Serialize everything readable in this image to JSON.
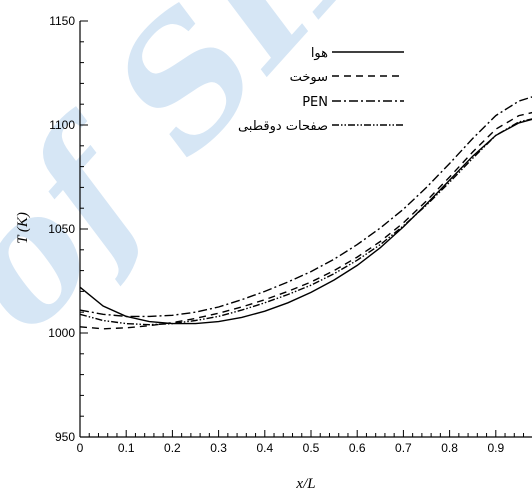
{
  "watermark": {
    "text": "of SID",
    "color": "#d6e6f5"
  },
  "chart_data": {
    "type": "line",
    "xlabel": "x/L",
    "ylabel": "T (K)",
    "xlim": [
      0,
      1
    ],
    "ylim": [
      950,
      1150
    ],
    "x_ticks": [
      "0",
      "0.1",
      "0.2",
      "0.3",
      "0.4",
      "0.5",
      "0.6",
      "0.7",
      "0.8",
      "0.9"
    ],
    "y_ticks": [
      "950",
      "1000",
      "1050",
      "1100",
      "1150"
    ],
    "grid": false,
    "legend_position": "top-right",
    "series": [
      {
        "name": "هوا",
        "dash": "solid",
        "x": [
          0,
          0.05,
          0.1,
          0.15,
          0.2,
          0.25,
          0.3,
          0.35,
          0.4,
          0.45,
          0.5,
          0.55,
          0.6,
          0.65,
          0.7,
          0.75,
          0.8,
          0.85,
          0.9,
          0.95,
          1.0
        ],
        "y": [
          1022,
          1013,
          1008,
          1005.5,
          1004.5,
          1004.5,
          1005.5,
          1007.5,
          1010.5,
          1014.5,
          1019.5,
          1025.5,
          1032.5,
          1041,
          1051,
          1062,
          1073.5,
          1085,
          1095,
          1101,
          1104
        ]
      },
      {
        "name": "سوخت",
        "dash": "dashed",
        "x": [
          0,
          0.05,
          0.1,
          0.15,
          0.2,
          0.25,
          0.3,
          0.35,
          0.4,
          0.45,
          0.5,
          0.55,
          0.6,
          0.65,
          0.7,
          0.75,
          0.8,
          0.85,
          0.9,
          0.95,
          1.0
        ],
        "y": [
          1003,
          1002,
          1002.5,
          1003.5,
          1005,
          1007,
          1009.5,
          1012.5,
          1016,
          1020,
          1024.5,
          1030,
          1036.5,
          1044,
          1053,
          1063.5,
          1075,
          1087,
          1098,
          1104.5,
          1107
        ]
      },
      {
        "name": "PEN",
        "dash": "dash-dot",
        "x": [
          0,
          0.05,
          0.1,
          0.15,
          0.2,
          0.25,
          0.3,
          0.35,
          0.4,
          0.45,
          0.5,
          0.55,
          0.6,
          0.65,
          0.7,
          0.75,
          0.8,
          0.85,
          0.9,
          0.95,
          1.0
        ],
        "y": [
          1011,
          1009,
          1008,
          1008,
          1008.5,
          1010,
          1012.5,
          1016,
          1020,
          1024.5,
          1029.5,
          1035.5,
          1042.5,
          1050.5,
          1059.5,
          1070,
          1081.5,
          1093.5,
          1104.5,
          1111.5,
          1115
        ]
      },
      {
        "name": "صفحات دوقطبی",
        "dash": "dash-dot-dot",
        "x": [
          0,
          0.05,
          0.1,
          0.15,
          0.2,
          0.25,
          0.3,
          0.35,
          0.4,
          0.45,
          0.5,
          0.55,
          0.6,
          0.65,
          0.7,
          0.75,
          0.8,
          0.85,
          0.9,
          0.95,
          1.0
        ],
        "y": [
          1009,
          1006,
          1004.5,
          1004,
          1004.5,
          1006,
          1008,
          1011,
          1014.5,
          1018.5,
          1023,
          1028.5,
          1035,
          1042.5,
          1051.5,
          1061.5,
          1072.5,
          1084,
          1095,
          1101.5,
          1104
        ]
      }
    ]
  }
}
